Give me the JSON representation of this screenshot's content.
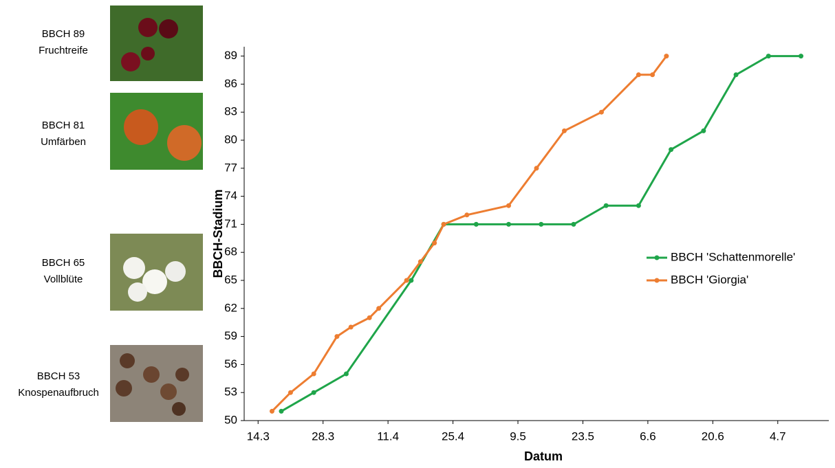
{
  "chart_data": {
    "type": "line",
    "x_label": "Datum",
    "y_label": "BBCH-Stadium",
    "stages": [
      {
        "code": "BBCH 89",
        "name": "Fruchtreife"
      },
      {
        "code": "BBCH 81",
        "name": "Umfärben"
      },
      {
        "code": "BBCH 65",
        "name": "Vollblüte"
      },
      {
        "code": "BBCH 53",
        "name": "Knospenaufbruch"
      }
    ],
    "series": [
      {
        "name": "BBCH 'Schattenmorelle'",
        "color": "#1fa54a",
        "x": [
          78,
          85,
          92,
          106,
          113,
          120,
          127,
          134,
          141,
          148,
          155,
          162,
          169,
          176,
          183,
          190
        ],
        "values": [
          51,
          53,
          55,
          65,
          71,
          71,
          71,
          71,
          71,
          73,
          73,
          79,
          81,
          87,
          89,
          89
        ]
      },
      {
        "name": "BBCH 'Giorgia'",
        "color": "#ed7d31",
        "x": [
          76,
          80,
          85,
          90,
          93,
          97,
          99,
          105,
          108,
          111,
          113,
          118,
          127,
          133,
          139,
          147,
          155,
          158,
          161
        ],
        "values": [
          51,
          53,
          55,
          59,
          60,
          61,
          62,
          65,
          67,
          69,
          71,
          72,
          73,
          77,
          81,
          83,
          87,
          87,
          89
        ]
      }
    ],
    "xlim": [
      70,
      196
    ],
    "xticks": [
      {
        "value": 73,
        "label": "14.3"
      },
      {
        "value": 87,
        "label": "28.3"
      },
      {
        "value": 101,
        "label": "11.4"
      },
      {
        "value": 115,
        "label": "25.4"
      },
      {
        "value": 129,
        "label": "9.5"
      },
      {
        "value": 143,
        "label": "23.5"
      },
      {
        "value": 157,
        "label": "6.6"
      },
      {
        "value": 171,
        "label": "20.6"
      },
      {
        "value": 185,
        "label": "4.7"
      }
    ],
    "ylim": [
      50,
      90
    ],
    "yticks": [
      50,
      53,
      56,
      59,
      62,
      65,
      68,
      71,
      74,
      77,
      80,
      83,
      86,
      89
    ],
    "grid": false,
    "legend": "right"
  }
}
